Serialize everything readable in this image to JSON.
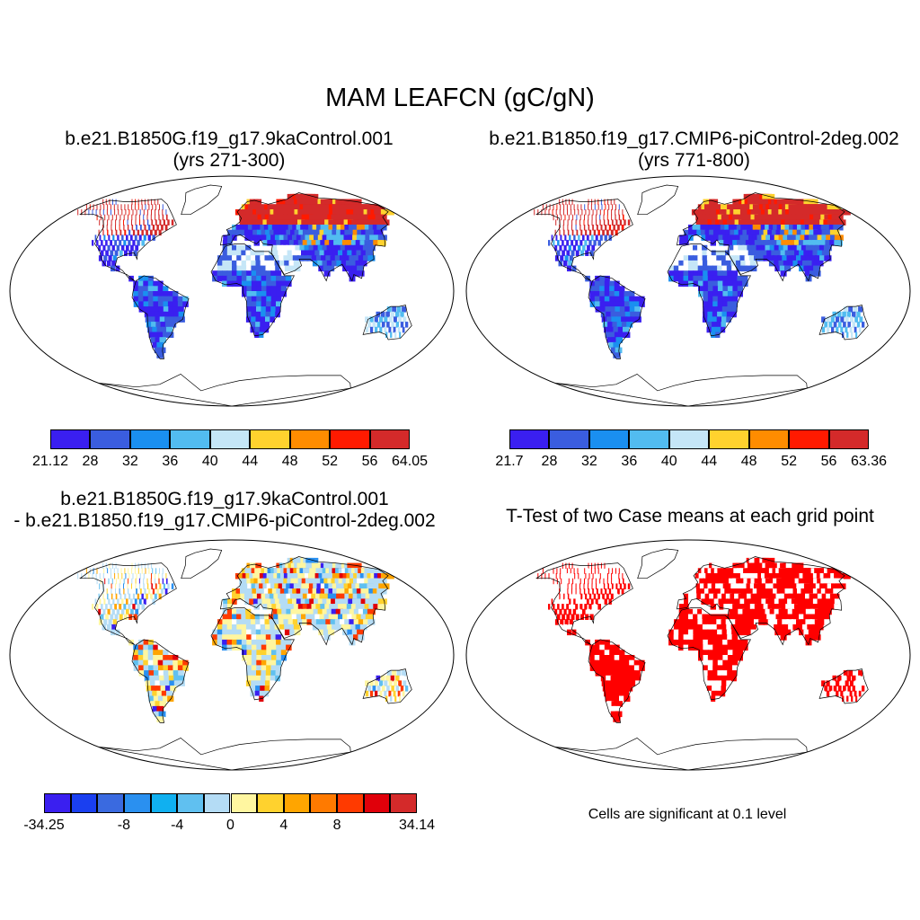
{
  "title": "MAM LEAFCN (gC/gN)",
  "panels": [
    {
      "id": "p1",
      "title_line1": "b.e21.B1850G.f19_g17.9kaControl.001",
      "title_line2": "(yrs 271-300)"
    },
    {
      "id": "p2",
      "title_line1": "b.e21.B1850.f19_g17.CMIP6-piControl-2deg.002",
      "title_line2": "(yrs 771-800)"
    },
    {
      "id": "p3",
      "title_line1": "b.e21.B1850G.f19_g17.9kaControl.001",
      "title_line2": "- b.e21.B1850.f19_g17.CMIP6-piControl-2deg.002"
    },
    {
      "id": "p4",
      "title_line1": "T-Test of two Case means at each grid point"
    }
  ],
  "colorbars": [
    {
      "id": "cb1",
      "colors": [
        "#3a1ff0",
        "#3a5ddf",
        "#1a8ff0",
        "#52bcf0",
        "#c5e6f7",
        "#ffd22e",
        "#ff8c00",
        "#ff1a00",
        "#d42a2a"
      ],
      "labels": [
        "21.12",
        "28",
        "32",
        "36",
        "40",
        "44",
        "48",
        "52",
        "56",
        "64.05"
      ]
    },
    {
      "id": "cb2",
      "colors": [
        "#3a1ff0",
        "#3a5ddf",
        "#1a8ff0",
        "#52bcf0",
        "#c5e6f7",
        "#ffd22e",
        "#ff8c00",
        "#ff1a00",
        "#d42a2a"
      ],
      "labels": [
        "21.7",
        "28",
        "32",
        "36",
        "40",
        "44",
        "48",
        "52",
        "56",
        "63.36"
      ]
    },
    {
      "id": "cb3",
      "colors": [
        "#3a1ff0",
        "#1a3ff0",
        "#3a6ae0",
        "#2a90f0",
        "#10b0f0",
        "#60c0f0",
        "#b4dcf5",
        "#fff6a0",
        "#ffd22e",
        "#ffa500",
        "#ff7a00",
        "#ff3a00",
        "#e0000a",
        "#d42a2a"
      ],
      "labels": [
        "-34.25",
        "-8",
        "-4",
        "0",
        "4",
        "8",
        "34.14"
      ],
      "label_ticks": [
        0,
        3,
        5,
        7,
        9,
        11,
        14
      ]
    }
  ],
  "significance_note": "Cells are significant at 0.1 level"
}
